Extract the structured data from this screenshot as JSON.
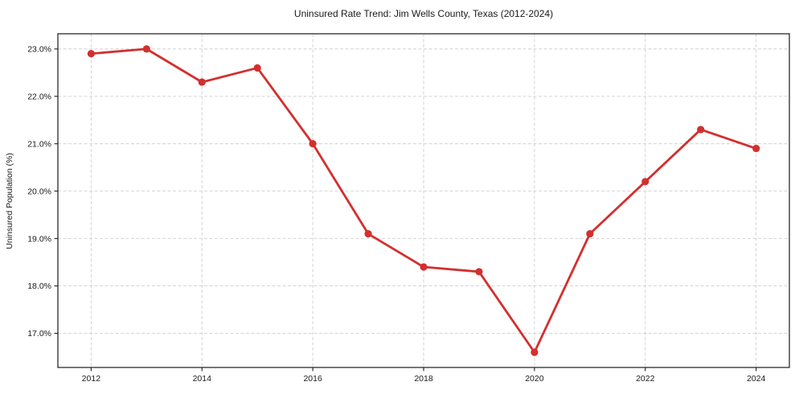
{
  "chart_data": {
    "type": "line",
    "title": "Uninsured Rate Trend: Jim Wells County, Texas (2012-2024)",
    "xlabel": "",
    "ylabel": "Uninsured Population (%)",
    "x": [
      2012,
      2013,
      2014,
      2015,
      2016,
      2017,
      2018,
      2019,
      2020,
      2021,
      2022,
      2023,
      2024
    ],
    "values": [
      22.9,
      23.0,
      22.3,
      22.6,
      21.0,
      19.1,
      18.4,
      18.3,
      16.6,
      19.1,
      20.2,
      21.3,
      20.9
    ],
    "x_ticks": [
      2012,
      2014,
      2016,
      2018,
      2020,
      2022,
      2024
    ],
    "x_tick_labels": [
      "2012",
      "2014",
      "2016",
      "2018",
      "2020",
      "2022",
      "2024"
    ],
    "y_ticks": [
      17.0,
      18.0,
      19.0,
      20.0,
      21.0,
      22.0,
      23.0
    ],
    "y_tick_labels": [
      "17.0%",
      "18.0%",
      "19.0%",
      "20.0%",
      "21.0%",
      "22.0%",
      "23.0%"
    ],
    "xlim": [
      2011.4,
      2024.6
    ],
    "ylim": [
      16.28,
      23.32
    ],
    "grid": true,
    "grid_style": "dashed",
    "legend": "none",
    "colors": {
      "line": "#d32f2f",
      "marker": "#d32f2f",
      "grid": "#cfcfcf",
      "axis": "#1a1a1a",
      "background": "#ffffff"
    }
  }
}
